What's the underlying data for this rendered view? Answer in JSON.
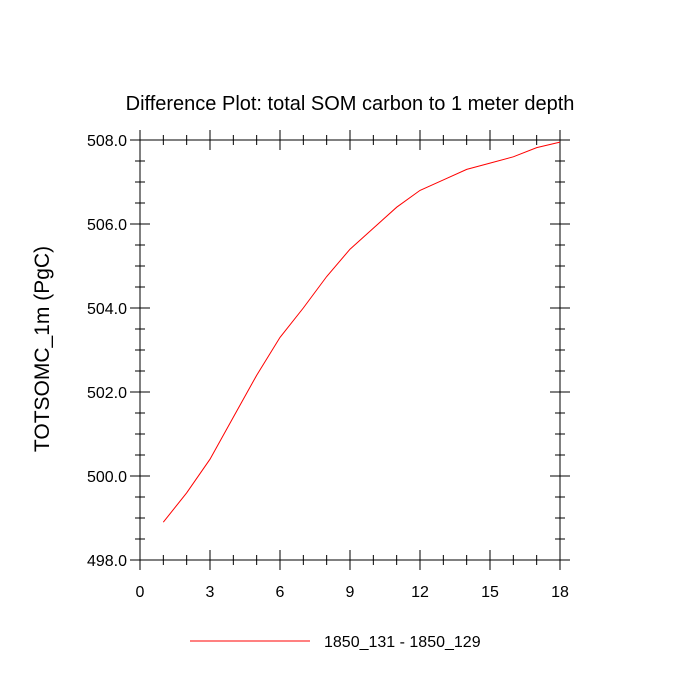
{
  "chart_data": {
    "type": "line",
    "title": "Difference Plot: total SOM carbon to 1 meter depth",
    "xlabel": "",
    "ylabel": "TOTSOMC_1m  (PgC)",
    "xlim": [
      0,
      18
    ],
    "ylim": [
      498,
      508
    ],
    "x_ticks": [
      0,
      3,
      6,
      9,
      12,
      15,
      18
    ],
    "x_tick_labels": [
      "0",
      "3",
      "6",
      "9",
      "12",
      "15",
      "18"
    ],
    "y_ticks": [
      498,
      500,
      502,
      504,
      506,
      508
    ],
    "y_tick_labels": [
      "498.0",
      "500.0",
      "502.0",
      "504.0",
      "506.0",
      "508.0"
    ],
    "grid": false,
    "legend_position": "bottom",
    "series": [
      {
        "name": "1850_131 - 1850_129",
        "color": "#ff0000",
        "x": [
          1,
          2,
          3,
          4,
          5,
          6,
          7,
          8,
          9,
          10,
          11,
          12,
          13,
          14,
          15,
          16,
          17,
          18
        ],
        "y": [
          498.9,
          499.6,
          500.4,
          501.4,
          502.4,
          503.3,
          504.0,
          504.75,
          505.4,
          505.9,
          506.4,
          506.8,
          507.05,
          507.3,
          507.45,
          507.6,
          507.82,
          507.95
        ]
      }
    ]
  }
}
